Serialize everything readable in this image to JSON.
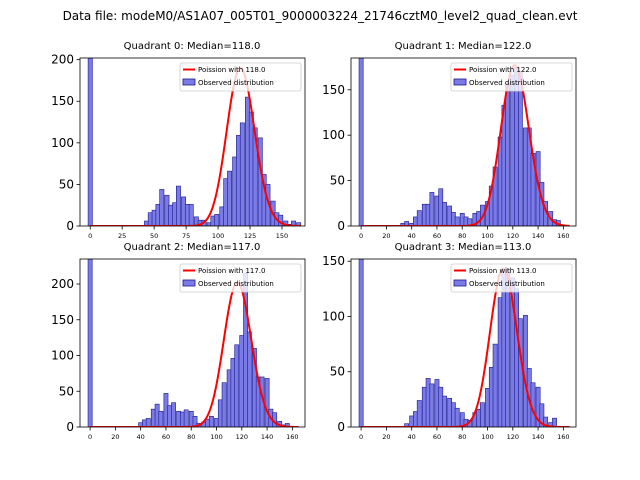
{
  "suptitle": "Data file: modeM0/AS1A07_005T01_9000003224_21746cztM0_level2_quad_clean.evt",
  "colors": {
    "bar_fill": "#7b7be8",
    "bar_edge": "#1a1a8c",
    "poisson": "#ff0000"
  },
  "chart_data": [
    {
      "type": "bar",
      "title": "Quadrant 0: Median=118.0",
      "legend": {
        "line_label": "Poission with 118.0",
        "bar_label": "Observed distribution",
        "position": "top-right"
      },
      "xlim": [
        -8,
        168
      ],
      "ylim": [
        0,
        202
      ],
      "xticks": [
        0,
        25,
        50,
        75,
        100,
        125,
        150
      ],
      "yticks": [
        0,
        50,
        100,
        150,
        200
      ],
      "bin_width": 3.35,
      "bins": [
        [
          0,
          202
        ],
        [
          44,
          6
        ],
        [
          47,
          16
        ],
        [
          50,
          19
        ],
        [
          53,
          26
        ],
        [
          56,
          44
        ],
        [
          60,
          37
        ],
        [
          63,
          25
        ],
        [
          66,
          28
        ],
        [
          69,
          48
        ],
        [
          73,
          35
        ],
        [
          76,
          26
        ],
        [
          79,
          26
        ],
        [
          83,
          11
        ],
        [
          86,
          7
        ],
        [
          89,
          7
        ],
        [
          93,
          4
        ],
        [
          96,
          12
        ],
        [
          99,
          14
        ],
        [
          103,
          23
        ],
        [
          106,
          57
        ],
        [
          109,
          66
        ],
        [
          113,
          83
        ],
        [
          116,
          109
        ],
        [
          119,
          124
        ],
        [
          123,
          155
        ],
        [
          126,
          137
        ],
        [
          129,
          118
        ],
        [
          133,
          106
        ],
        [
          136,
          62
        ],
        [
          139,
          50
        ],
        [
          143,
          30
        ],
        [
          146,
          16
        ],
        [
          149,
          13
        ],
        [
          153,
          6
        ],
        [
          156,
          2
        ],
        [
          159,
          6
        ],
        [
          163,
          4
        ]
      ],
      "poisson": {
        "mean": 118.0,
        "peak": 190
      }
    },
    {
      "type": "bar",
      "title": "Quadrant 1: Median=122.0",
      "legend": {
        "line_label": "Poission with 122.0",
        "bar_label": "Observed distribution",
        "position": "top-right"
      },
      "xlim": [
        -8,
        170
      ],
      "ylim": [
        0,
        185
      ],
      "xticks": [
        0,
        20,
        40,
        60,
        80,
        100,
        120,
        140,
        160
      ],
      "yticks": [
        0,
        50,
        100,
        150
      ],
      "bin_width": 3.3,
      "bins": [
        [
          0,
          185
        ],
        [
          33,
          3
        ],
        [
          36,
          5
        ],
        [
          40,
          3
        ],
        [
          43,
          10
        ],
        [
          46,
          17
        ],
        [
          50,
          24
        ],
        [
          53,
          24
        ],
        [
          56,
          37
        ],
        [
          60,
          33
        ],
        [
          63,
          41
        ],
        [
          66,
          26
        ],
        [
          70,
          22
        ],
        [
          73,
          15
        ],
        [
          76,
          10
        ],
        [
          80,
          14
        ],
        [
          83,
          10
        ],
        [
          86,
          8
        ],
        [
          90,
          14
        ],
        [
          93,
          16
        ],
        [
          96,
          23
        ],
        [
          100,
          27
        ],
        [
          103,
          44
        ],
        [
          106,
          65
        ],
        [
          110,
          98
        ],
        [
          113,
          133
        ],
        [
          116,
          157
        ],
        [
          120,
          166
        ],
        [
          123,
          175
        ],
        [
          126,
          169
        ],
        [
          130,
          108
        ],
        [
          133,
          108
        ],
        [
          136,
          80
        ],
        [
          140,
          82
        ],
        [
          143,
          48
        ],
        [
          146,
          27
        ],
        [
          150,
          16
        ],
        [
          153,
          7
        ],
        [
          156,
          6
        ]
      ],
      "poisson": {
        "mean": 122.0,
        "peak": 177
      }
    },
    {
      "type": "bar",
      "title": "Quadrant 2: Median=117.0",
      "legend": {
        "line_label": "Poission with 117.0",
        "bar_label": "Observed distribution",
        "position": "top-right"
      },
      "xlim": [
        -8,
        170
      ],
      "ylim": [
        0,
        235
      ],
      "xticks": [
        0,
        20,
        40,
        60,
        80,
        100,
        120,
        140,
        160
      ],
      "yticks": [
        0,
        50,
        100,
        150,
        200
      ],
      "bin_width": 3.3,
      "bins": [
        [
          0,
          235
        ],
        [
          40,
          6
        ],
        [
          43,
          10
        ],
        [
          46,
          12
        ],
        [
          50,
          25
        ],
        [
          53,
          32
        ],
        [
          56,
          22
        ],
        [
          60,
          47
        ],
        [
          63,
          30
        ],
        [
          66,
          34
        ],
        [
          70,
          22
        ],
        [
          73,
          21
        ],
        [
          76,
          24
        ],
        [
          80,
          22
        ],
        [
          83,
          15
        ],
        [
          86,
          5
        ],
        [
          90,
          7
        ],
        [
          93,
          11
        ],
        [
          96,
          15
        ],
        [
          100,
          12
        ],
        [
          103,
          38
        ],
        [
          106,
          62
        ],
        [
          110,
          80
        ],
        [
          113,
          96
        ],
        [
          116,
          115
        ],
        [
          120,
          128
        ],
        [
          123,
          215
        ],
        [
          126,
          133
        ],
        [
          130,
          110
        ],
        [
          133,
          70
        ],
        [
          136,
          70
        ],
        [
          140,
          68
        ],
        [
          143,
          25
        ],
        [
          146,
          20
        ],
        [
          150,
          8
        ],
        [
          153,
          3
        ],
        [
          156,
          5
        ]
      ],
      "poisson": {
        "mean": 117.0,
        "peak": 202
      }
    },
    {
      "type": "bar",
      "title": "Quadrant 3: Median=113.0",
      "legend": {
        "line_label": "Poission with 113.0",
        "bar_label": "Observed distribution",
        "position": "top-right"
      },
      "xlim": [
        -8,
        170
      ],
      "ylim": [
        0,
        152
      ],
      "xticks": [
        0,
        20,
        40,
        60,
        80,
        100,
        120,
        140,
        160
      ],
      "yticks": [
        0,
        50,
        100,
        150
      ],
      "bin_width": 3.3,
      "bins": [
        [
          0,
          152
        ],
        [
          36,
          3
        ],
        [
          40,
          10
        ],
        [
          43,
          14
        ],
        [
          46,
          24
        ],
        [
          50,
          36
        ],
        [
          53,
          44
        ],
        [
          56,
          39
        ],
        [
          60,
          43
        ],
        [
          63,
          36
        ],
        [
          66,
          28
        ],
        [
          70,
          26
        ],
        [
          73,
          22
        ],
        [
          76,
          17
        ],
        [
          80,
          13
        ],
        [
          83,
          7
        ],
        [
          86,
          6
        ],
        [
          90,
          13
        ],
        [
          93,
          16
        ],
        [
          96,
          22
        ],
        [
          100,
          35
        ],
        [
          103,
          54
        ],
        [
          106,
          75
        ],
        [
          110,
          117
        ],
        [
          113,
          143
        ],
        [
          116,
          143
        ],
        [
          120,
          135
        ],
        [
          123,
          125
        ],
        [
          126,
          98
        ],
        [
          130,
          101
        ],
        [
          133,
          53
        ],
        [
          136,
          40
        ],
        [
          140,
          36
        ],
        [
          143,
          21
        ],
        [
          146,
          9
        ],
        [
          150,
          4
        ],
        [
          153,
          8
        ]
      ],
      "poisson": {
        "mean": 113.0,
        "peak": 143
      }
    }
  ]
}
